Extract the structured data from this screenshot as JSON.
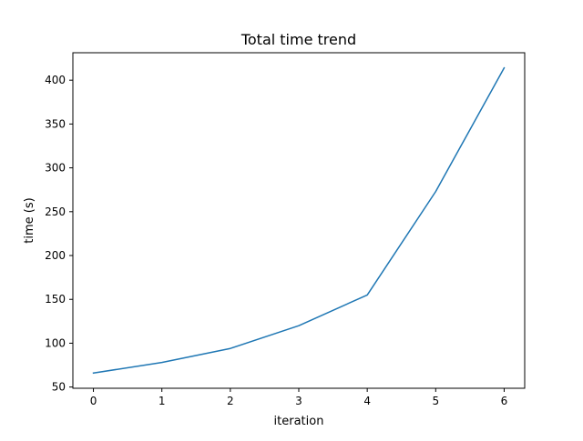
{
  "chart_data": {
    "type": "line",
    "title": "Total time trend",
    "xlabel": "iteration",
    "ylabel": "time (s)",
    "x": [
      0,
      1,
      2,
      3,
      4,
      5,
      6
    ],
    "series": [
      {
        "color": "#1f77b4",
        "values": [
          66,
          78,
          94,
          120,
          155,
          273,
          414
        ]
      }
    ],
    "xlim": [
      -0.3,
      6.3
    ],
    "ylim": [
      48.6,
      431.3
    ],
    "xticks": [
      0,
      1,
      2,
      3,
      4,
      5,
      6
    ],
    "yticks": [
      50,
      100,
      150,
      200,
      250,
      300,
      350,
      400
    ],
    "grid": false,
    "legend": "none"
  }
}
